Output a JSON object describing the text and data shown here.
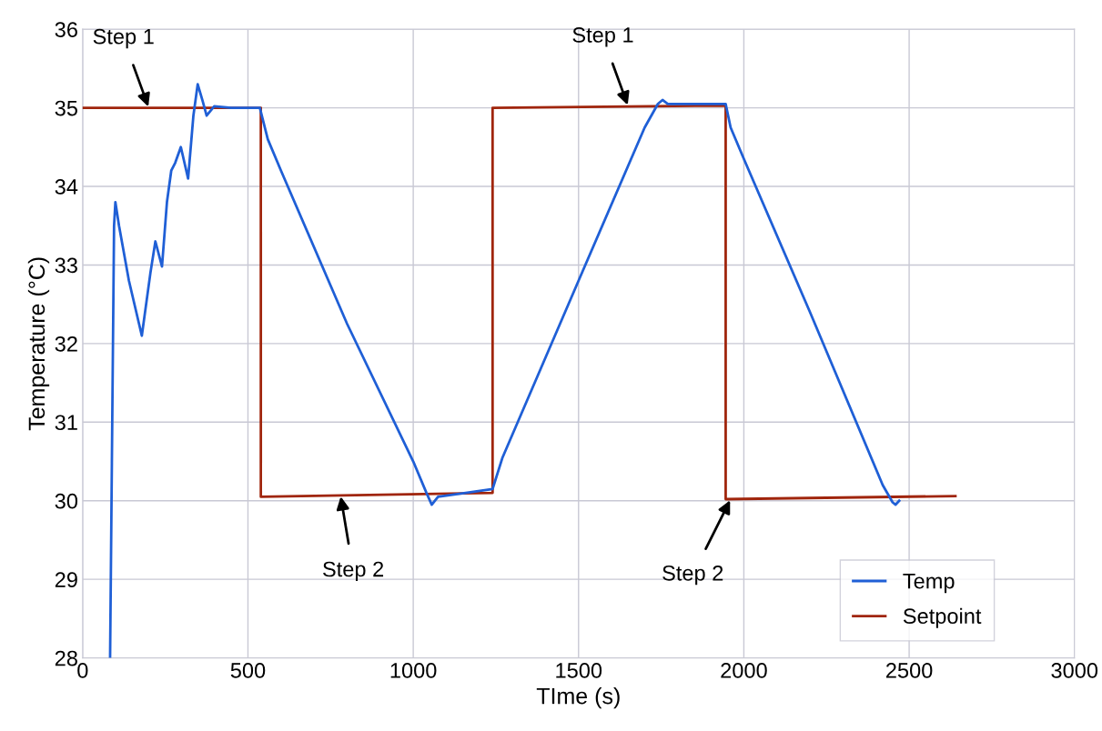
{
  "chart_data": {
    "type": "line",
    "xlabel": "TIme (s)",
    "ylabel": "Temperature (°C)",
    "xlim": [
      0,
      3000
    ],
    "xticks": [
      0,
      500,
      1000,
      1500,
      2000,
      2500,
      3000
    ],
    "ylim": [
      28,
      36
    ],
    "yticks": [
      28,
      29,
      30,
      31,
      32,
      33,
      34,
      35,
      36
    ],
    "grid": true,
    "legend": "bottom right",
    "marker": "none",
    "line_style": "solid",
    "series": [
      {
        "name": "Temp",
        "color": "#1f5fd6",
        "x": [
          83,
          95,
          99,
          110,
          140,
          179,
          205,
          220,
          240,
          255,
          268,
          280,
          297,
          319,
          335,
          348,
          362,
          375,
          398,
          450,
          536,
          560,
          600,
          800,
          1000,
          1040,
          1056,
          1075,
          1240,
          1270,
          1500,
          1700,
          1740,
          1754,
          1770,
          1945,
          1960,
          2000,
          2200,
          2420,
          2450,
          2459,
          2470
        ],
        "values": [
          28,
          33.5,
          33.8,
          33.5,
          32.8,
          32.1,
          32.9,
          33.3,
          32.98,
          33.8,
          34.2,
          34.3,
          34.5,
          34.1,
          34.9,
          35.3,
          35.1,
          34.9,
          35.02,
          35.0,
          35.0,
          34.6,
          34.2,
          32.25,
          30.5,
          30.1,
          29.95,
          30.05,
          30.15,
          30.55,
          32.8,
          34.75,
          35.05,
          35.1,
          35.05,
          35.05,
          34.75,
          34.35,
          32.4,
          30.2,
          29.98,
          29.95,
          30.0
        ]
      },
      {
        "name": "Setpoint",
        "color": "#a0250c",
        "x": [
          0,
          539,
          539,
          1240,
          1240,
          1945,
          1945,
          2640
        ],
        "values": [
          35.0,
          35.0,
          30.05,
          30.1,
          35.0,
          35.03,
          30.02,
          30.06
        ]
      }
    ],
    "annotations": [
      {
        "text": "Step 1",
        "x": 200,
        "y": 35.0
      },
      {
        "text": "Step 2",
        "x": 780,
        "y": 30.07
      },
      {
        "text": "Step 1",
        "x": 1650,
        "y": 35.02
      },
      {
        "text": "Step 2",
        "x": 1960,
        "y": 30.02
      }
    ]
  }
}
